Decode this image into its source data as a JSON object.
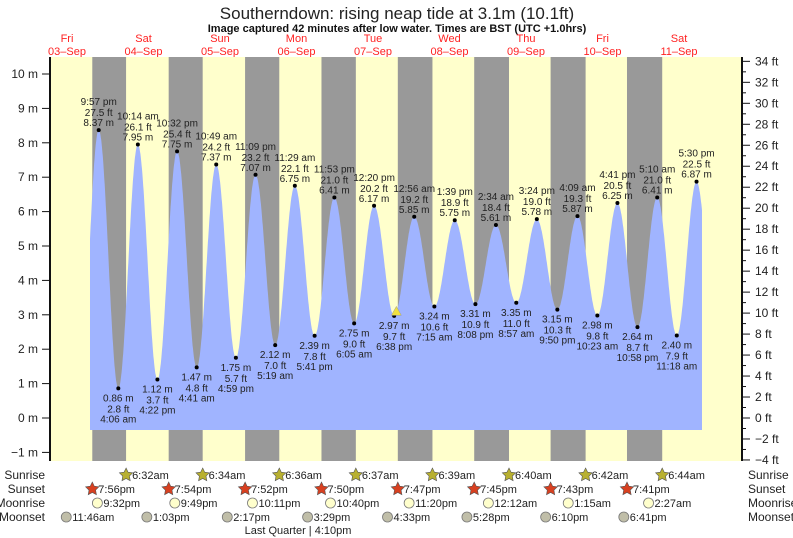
{
  "title": "Southerndown: rising  neap tide at 3.1m (10.1ft)",
  "subtitle": "Image captured 42 minutes after low water. Times are BST (UTC +1.0hrs)",
  "colors": {
    "day": "#ffffcc",
    "night": "#999999",
    "water": "#a0b4ff",
    "date": "#ff2222",
    "sunrise": "#b8b030",
    "sunset": "#d84020",
    "moonrise": "#ffffcc",
    "moonset": "#c0bea8",
    "now": "#f0e040"
  },
  "days": [
    {
      "name": "Fri",
      "date": "03–Sep"
    },
    {
      "name": "Sat",
      "date": "04–Sep"
    },
    {
      "name": "Sun",
      "date": "05–Sep"
    },
    {
      "name": "Mon",
      "date": "06–Sep"
    },
    {
      "name": "Tue",
      "date": "07–Sep"
    },
    {
      "name": "Wed",
      "date": "08–Sep"
    },
    {
      "name": "Thu",
      "date": "09–Sep"
    },
    {
      "name": "Fri",
      "date": "10–Sep"
    },
    {
      "name": "Sat",
      "date": "11–Sep"
    }
  ],
  "chart_data": {
    "type": "area",
    "title": "Southerndown: rising  neap tide at 3.1m (10.1ft)",
    "y_left": {
      "unit": "m",
      "range": [
        -1.25,
        10.5
      ],
      "ticks": [
        -1,
        0,
        1,
        2,
        3,
        4,
        5,
        6,
        7,
        8,
        9,
        10
      ],
      "tick_labels": [
        "−1 m",
        "0 m",
        "1 m",
        "2 m",
        "3 m",
        "4 m",
        "5 m",
        "6 m",
        "7 m",
        "8 m",
        "9 m",
        "10 m"
      ]
    },
    "y_right": {
      "unit": "ft",
      "ticks": [
        -4,
        -2,
        0,
        2,
        4,
        6,
        8,
        10,
        12,
        14,
        16,
        18,
        20,
        22,
        24,
        26,
        28,
        30,
        32,
        34
      ],
      "tick_labels": [
        "−4 ft",
        "−2 ft",
        "0 ft",
        "2 ft",
        "4 ft",
        "6 ft",
        "8 ft",
        "10 ft",
        "12 ft",
        "14 ft",
        "16 ft",
        "18 ft",
        "20 ft",
        "22 ft",
        "24 ft",
        "26 ft",
        "28 ft",
        "30 ft",
        "32 ft",
        "34 ft"
      ]
    },
    "current": {
      "day": 4,
      "time": "7:20 pm",
      "m": 3.1
    },
    "extremes": [
      {
        "d": 0,
        "time": "9:57 pm",
        "m": 8.37,
        "ft": "27.5 ft",
        "ml": "8.37 m",
        "type": "high"
      },
      {
        "d": 1,
        "time": "4:06 am",
        "m": 0.86,
        "ft": "2.8 ft",
        "ml": "0.86 m",
        "type": "low"
      },
      {
        "d": 1,
        "time": "10:14 am",
        "m": 7.95,
        "ft": "26.1 ft",
        "ml": "7.95 m",
        "type": "high"
      },
      {
        "d": 1,
        "time": "4:22 pm",
        "m": 1.12,
        "ft": "3.7 ft",
        "ml": "1.12 m",
        "type": "low"
      },
      {
        "d": 1,
        "time": "10:32 pm",
        "m": 7.75,
        "ft": "25.4 ft",
        "ml": "7.75 m",
        "type": "high"
      },
      {
        "d": 2,
        "time": "4:41 am",
        "m": 1.47,
        "ft": "4.8 ft",
        "ml": "1.47 m",
        "type": "low"
      },
      {
        "d": 2,
        "time": "10:49 am",
        "m": 7.37,
        "ft": "24.2 ft",
        "ml": "7.37 m",
        "type": "high"
      },
      {
        "d": 2,
        "time": "4:59 pm",
        "m": 1.75,
        "ft": "5.7 ft",
        "ml": "1.75 m",
        "type": "low"
      },
      {
        "d": 2,
        "time": "11:09 pm",
        "m": 7.07,
        "ft": "23.2 ft",
        "ml": "7.07 m",
        "type": "high"
      },
      {
        "d": 3,
        "time": "5:19 am",
        "m": 2.12,
        "ft": "7.0 ft",
        "ml": "2.12 m",
        "type": "low"
      },
      {
        "d": 3,
        "time": "11:29 am",
        "m": 6.75,
        "ft": "22.1 ft",
        "ml": "6.75 m",
        "type": "high"
      },
      {
        "d": 3,
        "time": "5:41 pm",
        "m": 2.39,
        "ft": "7.8 ft",
        "ml": "2.39 m",
        "type": "low"
      },
      {
        "d": 3,
        "time": "11:53 pm",
        "m": 6.41,
        "ft": "21.0 ft",
        "ml": "6.41 m",
        "type": "high"
      },
      {
        "d": 4,
        "time": "6:05 am",
        "m": 2.75,
        "ft": "9.0 ft",
        "ml": "2.75 m",
        "type": "low"
      },
      {
        "d": 4,
        "time": "12:20 pm",
        "m": 6.17,
        "ft": "20.2 ft",
        "ml": "6.17 m",
        "type": "high"
      },
      {
        "d": 4,
        "time": "6:38 pm",
        "m": 2.97,
        "ft": "9.7 ft",
        "ml": "2.97 m",
        "type": "low"
      },
      {
        "d": 5,
        "time": "12:56 am",
        "m": 5.85,
        "ft": "19.2 ft",
        "ml": "5.85 m",
        "type": "high"
      },
      {
        "d": 5,
        "time": "7:15 am",
        "m": 3.24,
        "ft": "10.6 ft",
        "ml": "3.24 m",
        "type": "low"
      },
      {
        "d": 5,
        "time": "1:39 pm",
        "m": 5.75,
        "ft": "18.9 ft",
        "ml": "5.75 m",
        "type": "high"
      },
      {
        "d": 5,
        "time": "8:08 pm",
        "m": 3.31,
        "ft": "10.9 ft",
        "ml": "3.31 m",
        "type": "low"
      },
      {
        "d": 6,
        "time": "2:34 am",
        "m": 5.61,
        "ft": "18.4 ft",
        "ml": "5.61 m",
        "type": "high"
      },
      {
        "d": 6,
        "time": "8:57 am",
        "m": 3.35,
        "ft": "11.0 ft",
        "ml": "3.35 m",
        "type": "low"
      },
      {
        "d": 6,
        "time": "3:24 pm",
        "m": 5.78,
        "ft": "19.0 ft",
        "ml": "5.78 m",
        "type": "high"
      },
      {
        "d": 6,
        "time": "9:50 pm",
        "m": 3.15,
        "ft": "10.3 ft",
        "ml": "3.15 m",
        "type": "low"
      },
      {
        "d": 7,
        "time": "4:09 am",
        "m": 5.87,
        "ft": "19.3 ft",
        "ml": "5.87 m",
        "type": "high"
      },
      {
        "d": 7,
        "time": "10:23 am",
        "m": 2.98,
        "ft": "9.8 ft",
        "ml": "2.98 m",
        "type": "low"
      },
      {
        "d": 7,
        "time": "4:41 pm",
        "m": 6.25,
        "ft": "20.5 ft",
        "ml": "6.25 m",
        "type": "high"
      },
      {
        "d": 7,
        "time": "10:58 pm",
        "m": 2.64,
        "ft": "8.7 ft",
        "ml": "2.64 m",
        "type": "low"
      },
      {
        "d": 8,
        "time": "5:10 am",
        "m": 6.41,
        "ft": "21.0 ft",
        "ml": "6.41 m",
        "type": "high"
      },
      {
        "d": 8,
        "time": "11:18 am",
        "m": 2.4,
        "ft": "7.9 ft",
        "ml": "2.40 m",
        "type": "low"
      },
      {
        "d": 8,
        "time": "5:30 pm",
        "m": 6.87,
        "ft": "22.5 ft",
        "ml": "6.87 m",
        "type": "high"
      }
    ]
  },
  "rows": {
    "sunrise": {
      "label": "Sunrise",
      "events": [
        [
          1,
          "6:32am"
        ],
        [
          2,
          "6:34am"
        ],
        [
          3,
          "6:36am"
        ],
        [
          4,
          "6:37am"
        ],
        [
          5,
          "6:39am"
        ],
        [
          6,
          "6:40am"
        ],
        [
          7,
          "6:42am"
        ],
        [
          8,
          "6:44am"
        ]
      ]
    },
    "sunset": {
      "label": "Sunset",
      "events": [
        [
          0,
          "7:56pm"
        ],
        [
          1,
          "7:54pm"
        ],
        [
          2,
          "7:52pm"
        ],
        [
          3,
          "7:50pm"
        ],
        [
          4,
          "7:47pm"
        ],
        [
          5,
          "7:45pm"
        ],
        [
          6,
          "7:43pm"
        ],
        [
          7,
          "7:41pm"
        ]
      ]
    },
    "moonrise": {
      "label": "Moonrise",
      "events": [
        [
          0,
          "9:32pm"
        ],
        [
          1,
          "9:49pm"
        ],
        [
          2,
          "10:11pm"
        ],
        [
          3,
          "10:40pm"
        ],
        [
          4,
          "11:20pm"
        ],
        [
          6,
          "12:12am"
        ],
        [
          7,
          "1:15am"
        ],
        [
          8,
          "2:27am"
        ]
      ]
    },
    "moonset": {
      "label": "Moonset",
      "events": [
        [
          0,
          "11:46am"
        ],
        [
          1,
          "1:03pm"
        ],
        [
          2,
          "2:17pm"
        ],
        [
          3,
          "3:29pm"
        ],
        [
          4,
          "4:33pm"
        ],
        [
          5,
          "5:28pm"
        ],
        [
          6,
          "6:10pm"
        ],
        [
          7,
          "6:41pm"
        ]
      ]
    }
  },
  "moon_phase": "Last Quarter | 4:10pm"
}
